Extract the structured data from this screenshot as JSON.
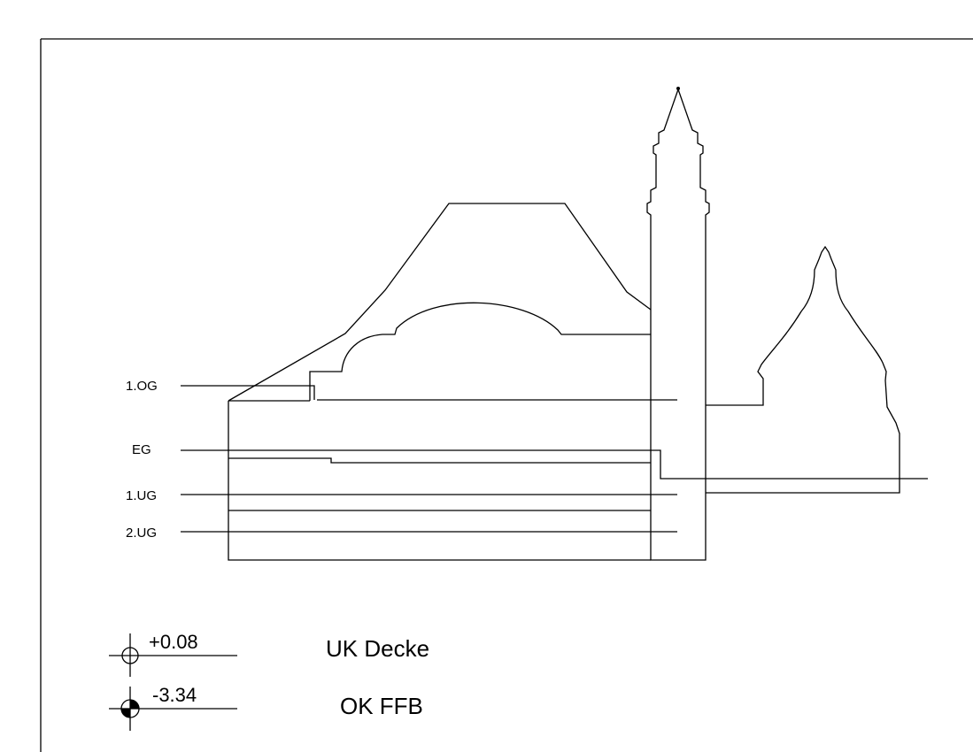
{
  "levels": {
    "og1": "1.OG",
    "eg": "EG",
    "ug1": "1.UG",
    "ug2": "2.UG"
  },
  "legend": {
    "ceiling": {
      "value": "+0.08",
      "label": "UK Decke",
      "symbol": "open-level-symbol"
    },
    "floor": {
      "value": "-3.34",
      "label": "OK FFB",
      "symbol": "filled-level-symbol"
    }
  }
}
